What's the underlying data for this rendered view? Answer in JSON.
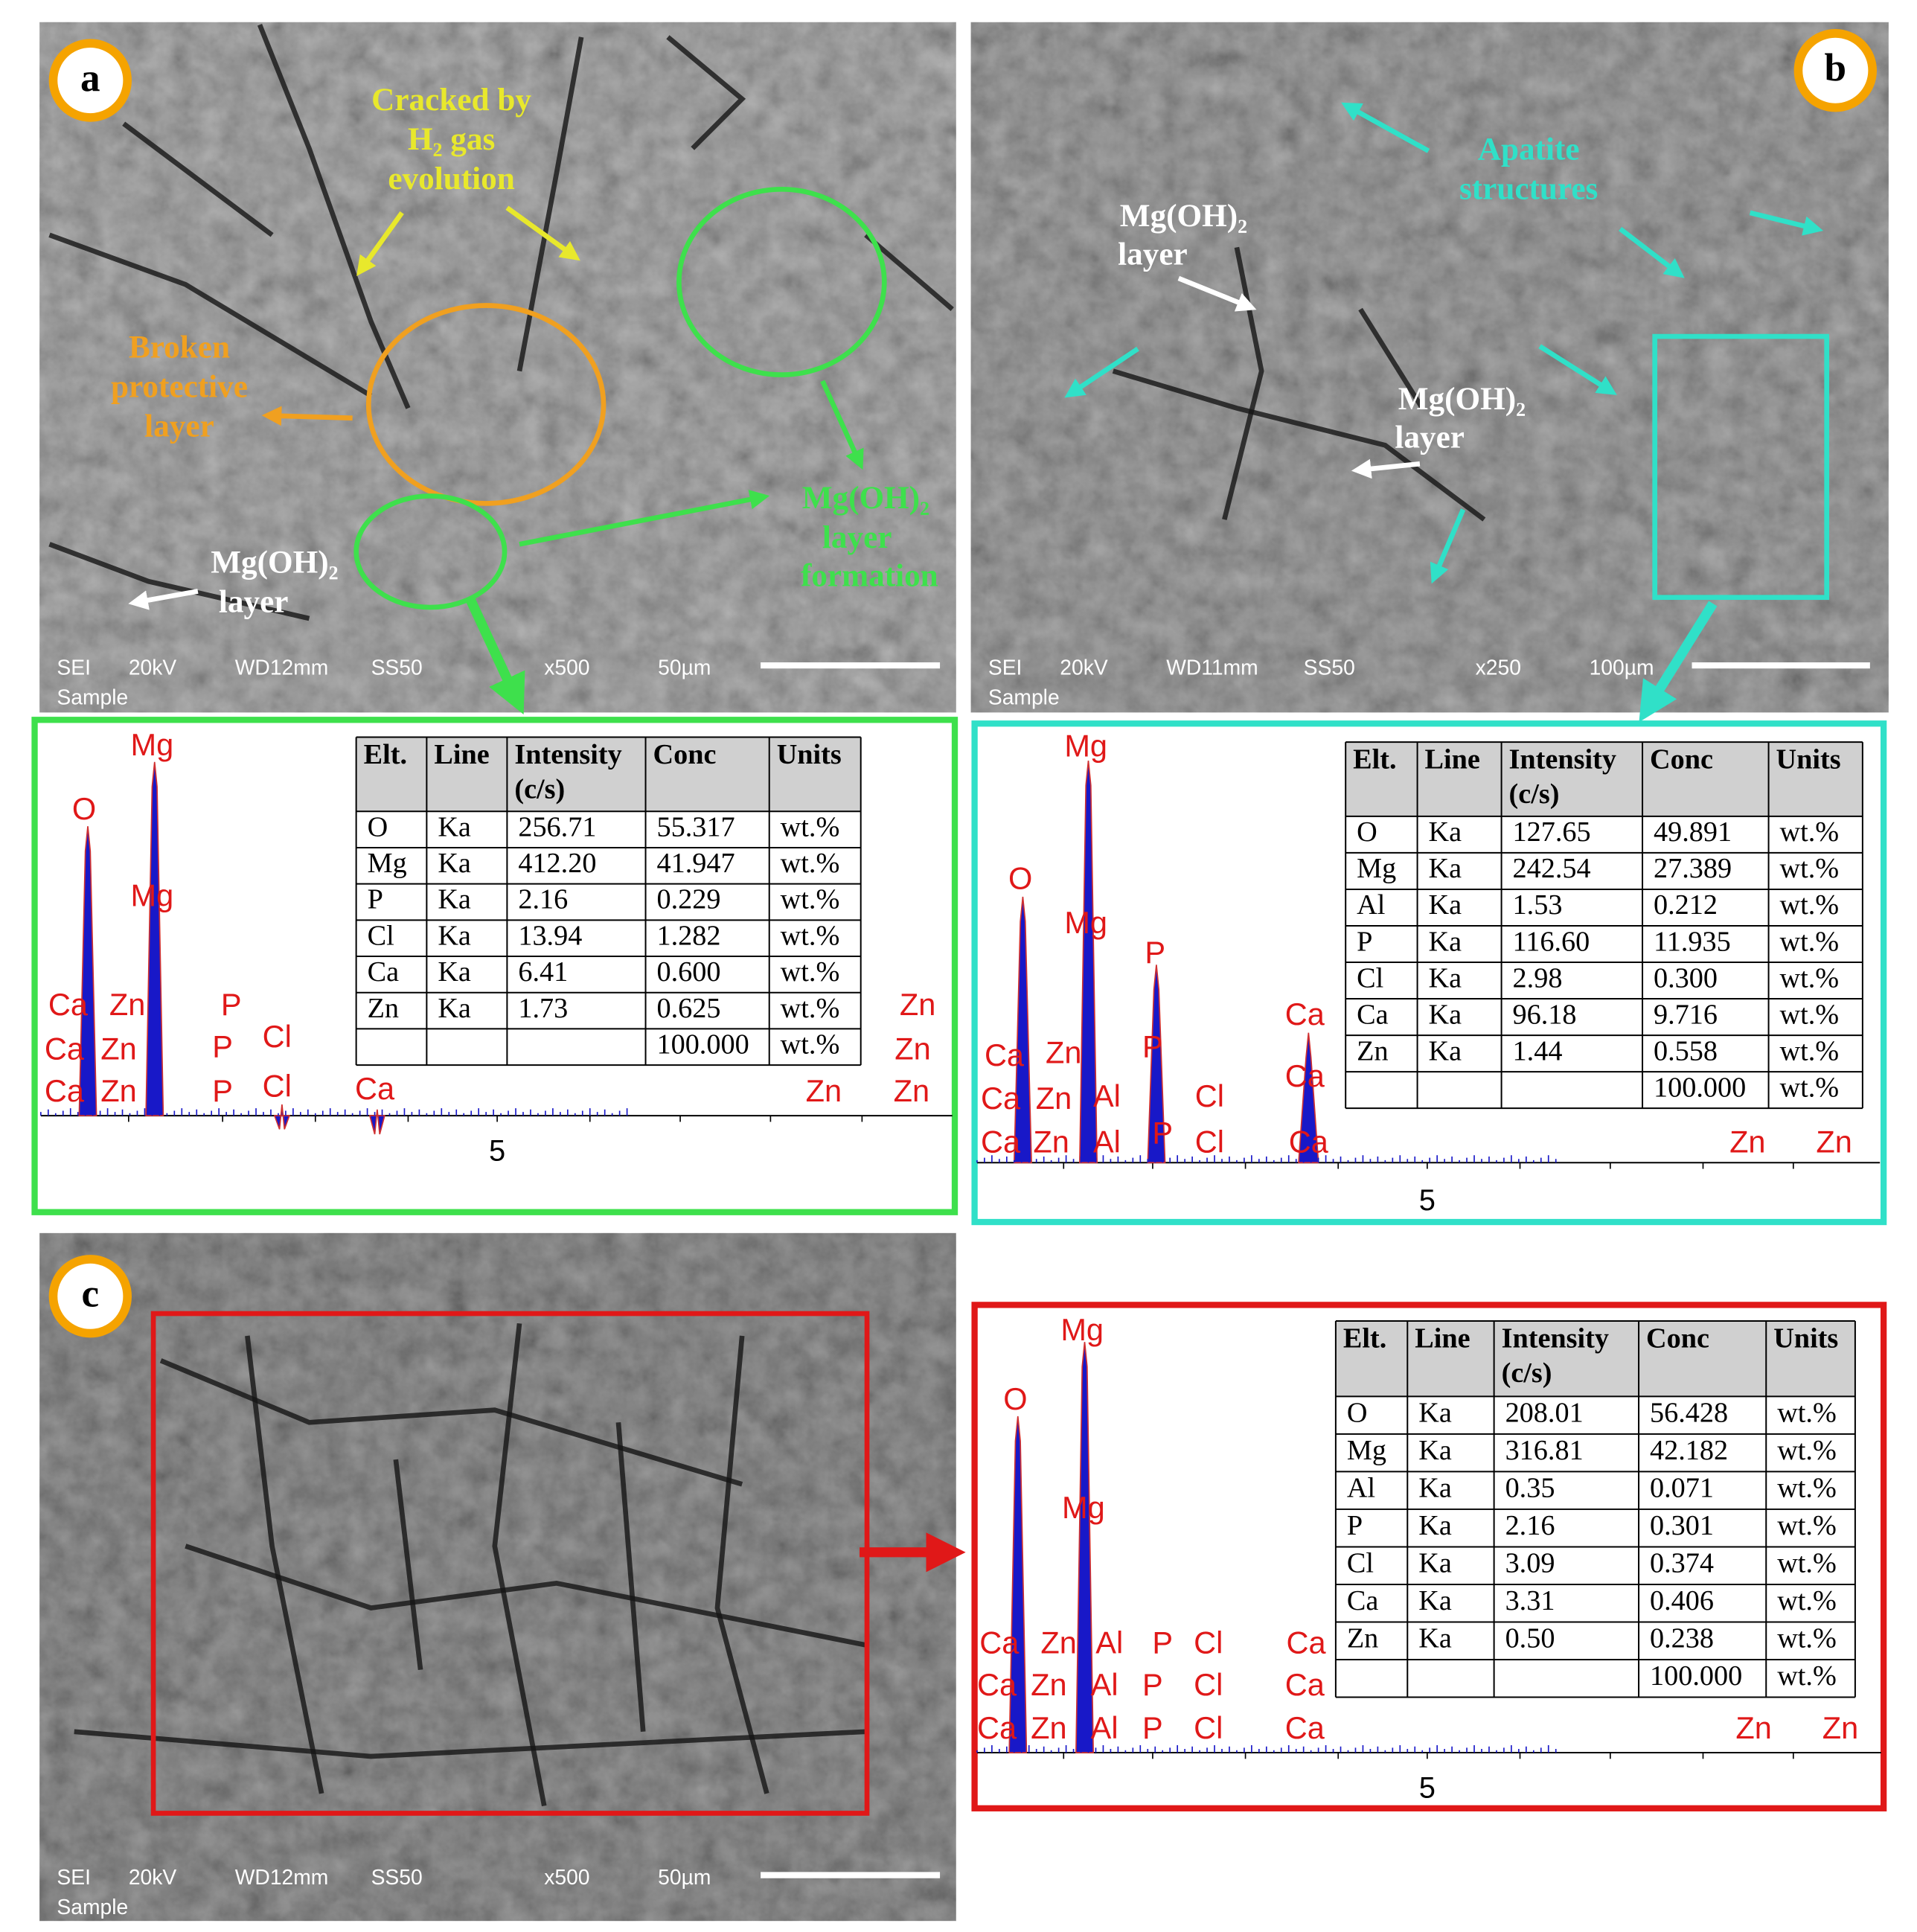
{
  "panels": [
    {
      "label": "a",
      "sem_info": [
        "SEI",
        "20kV",
        "WD12mm",
        "SS50",
        "x500",
        "50µm",
        "Sample"
      ],
      "annotations": [
        [
          "Cracked by",
          "H₂ gas",
          "evolution"
        ],
        [
          "Broken",
          "protective",
          "layer"
        ],
        [
          "Mg(OH)₂",
          "layer"
        ],
        [
          "Mg(OH)₂",
          "layer",
          "formation"
        ]
      ],
      "eds": {
        "peak_labels": [
          "Mg",
          "O",
          "Mg",
          "Ca",
          "Zn",
          "P",
          "Zn",
          "Ca",
          "Zn",
          "P",
          "Cl",
          "Zn",
          "Ca",
          "Zn",
          "P",
          "Cl",
          "Ca",
          "Zn",
          "Zn"
        ],
        "axis_tick": "5",
        "table": {
          "header": [
            [
              "Elt."
            ],
            [
              "Line"
            ],
            [
              "Intensity",
              "(c/s)"
            ],
            [
              "Conc"
            ],
            [
              "Units"
            ]
          ],
          "rows": [
            [
              "O",
              "Ka",
              "256.71",
              "55.317",
              "wt.%"
            ],
            [
              "Mg",
              "Ka",
              "412.20",
              "41.947",
              "wt.%"
            ],
            [
              "P",
              "Ka",
              "2.16",
              "0.229",
              "wt.%"
            ],
            [
              "Cl",
              "Ka",
              "13.94",
              "1.282",
              "wt.%"
            ],
            [
              "Ca",
              "Ka",
              "6.41",
              "0.600",
              "wt.%"
            ],
            [
              "Zn",
              "Ka",
              "1.73",
              "0.625",
              "wt.%"
            ]
          ],
          "total": [
            "100.000",
            "wt.%"
          ]
        }
      }
    },
    {
      "label": "b",
      "sem_info": [
        "SEI",
        "20kV",
        "WD11mm",
        "SS50",
        "x250",
        "100µm",
        "Sample"
      ],
      "annotations": [
        [
          "Apatite",
          "structures"
        ],
        [
          "Mg(OH)₂",
          "layer"
        ],
        [
          "Mg(OH)₂",
          "layer"
        ]
      ],
      "eds": {
        "peak_labels": [
          "Mg",
          "O",
          "Mg",
          "P",
          "Ca",
          "P",
          "Ca",
          "Zn",
          "Ca",
          "Ca",
          "Zn",
          "Al",
          "Cl",
          "Ca",
          "Zn",
          "Al",
          "P",
          "Cl",
          "Ca",
          "Zn",
          "Zn"
        ],
        "axis_tick": "5",
        "table": {
          "header": [
            [
              "Elt."
            ],
            [
              "Line"
            ],
            [
              "Intensity",
              "(c/s)"
            ],
            [
              "Conc"
            ],
            [
              "Units"
            ]
          ],
          "rows": [
            [
              "O",
              "Ka",
              "127.65",
              "49.891",
              "wt.%"
            ],
            [
              "Mg",
              "Ka",
              "242.54",
              "27.389",
              "wt.%"
            ],
            [
              "Al",
              "Ka",
              "1.53",
              "0.212",
              "wt.%"
            ],
            [
              "P",
              "Ka",
              "116.60",
              "11.935",
              "wt.%"
            ],
            [
              "Cl",
              "Ka",
              "2.98",
              "0.300",
              "wt.%"
            ],
            [
              "Ca",
              "Ka",
              "96.18",
              "9.716",
              "wt.%"
            ],
            [
              "Zn",
              "Ka",
              "1.44",
              "0.558",
              "wt.%"
            ]
          ],
          "total": [
            "100.000",
            "wt.%"
          ]
        }
      }
    },
    {
      "label": "c",
      "sem_info": [
        "SEI",
        "20kV",
        "WD12mm",
        "SS50",
        "x500",
        "50µm",
        "Sample"
      ],
      "annotations": [],
      "eds": {
        "peak_labels": [
          "Mg",
          "O",
          "Mg",
          "Ca",
          "Zn",
          "Al",
          "P",
          "Cl",
          "Ca",
          "Ca",
          "Zn",
          "Al",
          "P",
          "Cl",
          "Ca",
          "Ca",
          "Zn",
          "Al",
          "P",
          "Cl",
          "Ca",
          "Zn",
          "Zn"
        ],
        "axis_tick": "5",
        "table": {
          "header": [
            [
              "Elt."
            ],
            [
              "Line"
            ],
            [
              "Intensity",
              "(c/s)"
            ],
            [
              "Conc"
            ],
            [
              "Units"
            ]
          ],
          "rows": [
            [
              "O",
              "Ka",
              "208.01",
              "56.428",
              "wt.%"
            ],
            [
              "Mg",
              "Ka",
              "316.81",
              "42.182",
              "wt.%"
            ],
            [
              "Al",
              "Ka",
              "0.35",
              "0.071",
              "wt.%"
            ],
            [
              "P",
              "Ka",
              "2.16",
              "0.301",
              "wt.%"
            ],
            [
              "Cl",
              "Ka",
              "3.09",
              "0.374",
              "wt.%"
            ],
            [
              "Ca",
              "Ka",
              "3.31",
              "0.406",
              "wt.%"
            ],
            [
              "Zn",
              "Ka",
              "0.50",
              "0.238",
              "wt.%"
            ]
          ],
          "total": [
            "100.000",
            "wt.%"
          ]
        }
      }
    }
  ]
}
